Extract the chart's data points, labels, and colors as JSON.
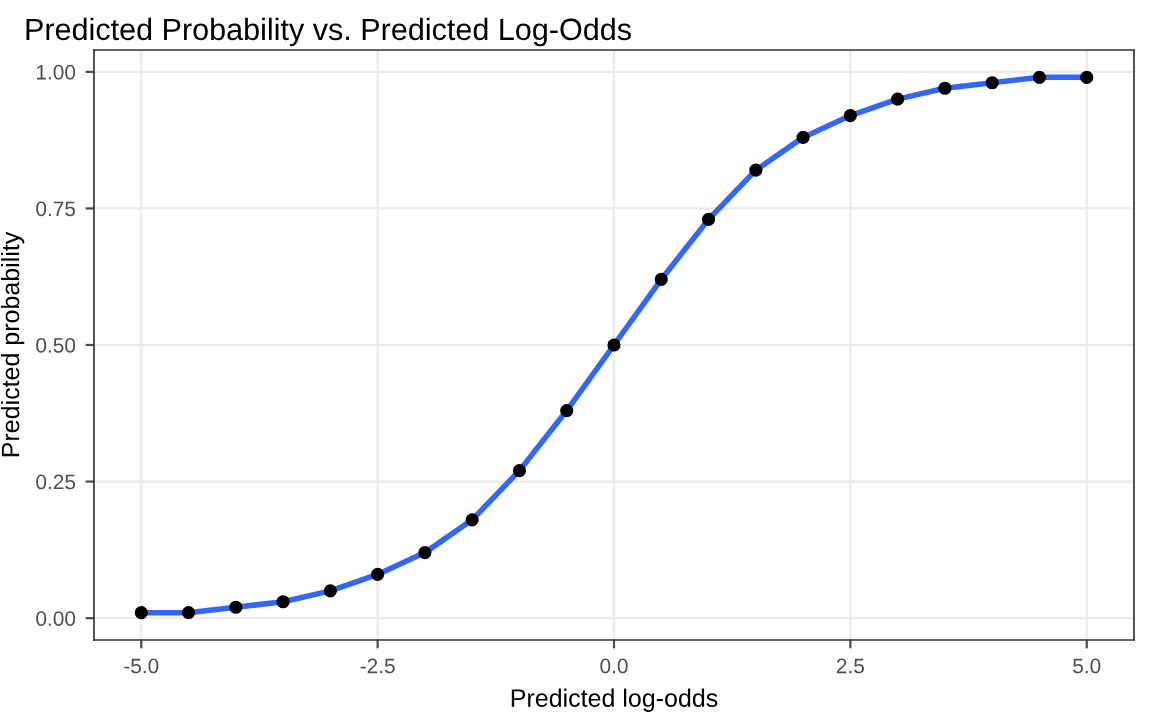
{
  "chart_data": {
    "type": "line",
    "title": "Predicted Probability vs. Predicted Log-Odds",
    "xlabel": "Predicted log-odds",
    "ylabel": "Predicted probability",
    "x": [
      -5,
      -4.5,
      -4,
      -3.5,
      -3,
      -2.5,
      -2,
      -1.5,
      -1,
      -0.5,
      0,
      0.5,
      1,
      1.5,
      2,
      2.5,
      3,
      3.5,
      4,
      4.5,
      5
    ],
    "series": [
      {
        "color": "#3366ff",
        "values": [
          0.01,
          0.01,
          0.02,
          0.03,
          0.05,
          0.08,
          0.12,
          0.18,
          0.27,
          0.38,
          0.5,
          0.62,
          0.73,
          0.82,
          0.88,
          0.92,
          0.95,
          0.97,
          0.98,
          0.99,
          0.99
        ]
      },
      {
        "type": "scatter",
        "color": "#000000",
        "marker": "circle",
        "values": [
          0.01,
          0.01,
          0.02,
          0.03,
          0.05,
          0.08,
          0.12,
          0.18,
          0.27,
          0.38,
          0.5,
          0.62,
          0.73,
          0.82,
          0.88,
          0.92,
          0.95,
          0.97,
          0.98,
          0.99,
          0.99
        ]
      }
    ],
    "xlim": [
      -5.5,
      5.5
    ],
    "xticks": [
      {
        "value": -5,
        "label": "-5.0"
      },
      {
        "value": -2.5,
        "label": "-2.5"
      },
      {
        "value": 0,
        "label": "0.0"
      },
      {
        "value": 2.5,
        "label": "2.5"
      },
      {
        "value": 5,
        "label": "5.0"
      }
    ],
    "ylim": [
      -0.04,
      1.04
    ],
    "yticks": [
      {
        "value": 0,
        "label": "0.00"
      },
      {
        "value": 0.25,
        "label": "0.25"
      },
      {
        "value": 0.5,
        "label": "0.50"
      },
      {
        "value": 0.75,
        "label": "0.75"
      },
      {
        "value": 1,
        "label": "1.00"
      }
    ],
    "grid": true,
    "legend": false
  }
}
